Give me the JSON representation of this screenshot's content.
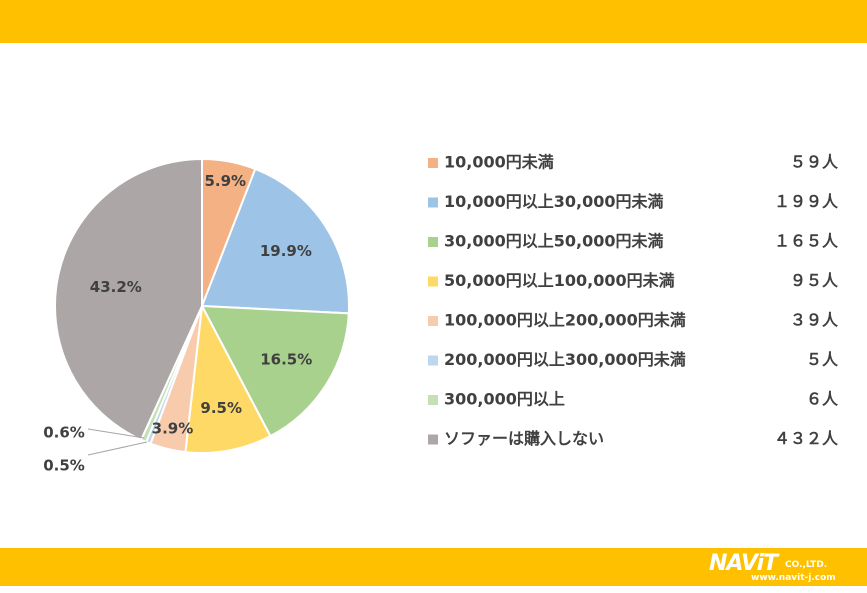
{
  "chart_data": {
    "type": "pie",
    "start": "top, clockwise",
    "slices": [
      {
        "label": "10,000円未満",
        "percent": 5.9,
        "percent_label": "5.9%",
        "count": "５９人",
        "color": "#F4B183"
      },
      {
        "label": "10,000円以上30,000円未満",
        "percent": 19.9,
        "percent_label": "19.9%",
        "count": "１９９人",
        "color": "#9DC3E6"
      },
      {
        "label": "30,000円以上50,000円未満",
        "percent": 16.5,
        "percent_label": "16.5%",
        "count": "１６５人",
        "color": "#A9D18E"
      },
      {
        "label": "50,000円以上100,000円未満",
        "percent": 9.5,
        "percent_label": "9.5%",
        "count": "９５人",
        "color": "#FFD966"
      },
      {
        "label": "100,000円以上200,000円未満",
        "percent": 3.9,
        "percent_label": "3.9%",
        "count": "３９人",
        "color": "#F8CBAD"
      },
      {
        "label": "200,000円以上300,000円未満",
        "percent": 0.5,
        "percent_label": "0.5%",
        "count": "５人",
        "color": "#BDD7EE"
      },
      {
        "label": "300,000円以上",
        "percent": 0.6,
        "percent_label": "0.6%",
        "count": "６人",
        "color": "#C5E0B4"
      },
      {
        "label": "ソファーは購入しない",
        "percent": 43.2,
        "percent_label": "43.2%",
        "count": "４３２人",
        "color": "#ADA6A6"
      }
    ],
    "legend_position": "right"
  },
  "logo": {
    "brand": "NAViT",
    "suffix": "CO.,LTD.",
    "url": "www.navit-j.com"
  }
}
